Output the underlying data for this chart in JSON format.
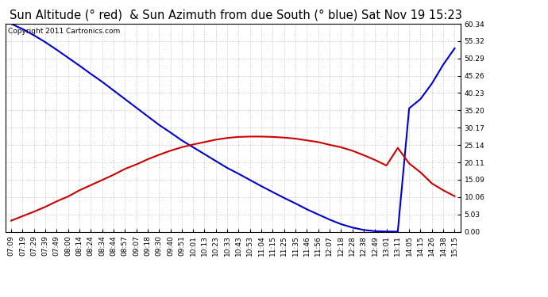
{
  "title": "Sun Altitude (° red)  & Sun Azimuth from due South (° blue) Sat Nov 19 15:23",
  "copyright_text": "Copyright 2011 Cartronics.com",
  "background_color": "#ffffff",
  "plot_bg_color": "#ffffff",
  "grid_color": "#b0b0b0",
  "y_ticks": [
    0.0,
    5.03,
    10.06,
    15.09,
    20.11,
    25.14,
    30.17,
    35.2,
    40.23,
    45.26,
    50.29,
    55.32,
    60.34
  ],
  "x_labels": [
    "07:09",
    "07:19",
    "07:29",
    "07:39",
    "07:49",
    "08:00",
    "08:14",
    "08:24",
    "08:34",
    "08:44",
    "08:57",
    "09:07",
    "09:18",
    "09:30",
    "09:40",
    "09:51",
    "10:01",
    "10:13",
    "10:23",
    "10:33",
    "10:43",
    "10:53",
    "11:04",
    "11:15",
    "11:25",
    "11:35",
    "11:46",
    "11:56",
    "12:07",
    "12:18",
    "12:28",
    "12:38",
    "12:49",
    "13:01",
    "13:11",
    "14:05",
    "14:15",
    "14:26",
    "14:38",
    "15:15"
  ],
  "blue_data": [
    60.34,
    58.8,
    57.0,
    55.0,
    52.8,
    50.5,
    48.2,
    45.8,
    43.5,
    41.0,
    38.5,
    36.0,
    33.5,
    31.0,
    28.8,
    26.5,
    24.5,
    22.5,
    20.5,
    18.5,
    16.8,
    15.0,
    13.2,
    11.5,
    9.8,
    8.2,
    6.5,
    5.0,
    3.5,
    2.2,
    1.2,
    0.5,
    0.15,
    0.05,
    0.02,
    35.8,
    38.5,
    43.0,
    48.5,
    53.2
  ],
  "red_data": [
    3.2,
    4.5,
    5.8,
    7.2,
    8.8,
    10.2,
    12.0,
    13.5,
    15.0,
    16.5,
    18.2,
    19.5,
    21.0,
    22.3,
    23.5,
    24.5,
    25.3,
    26.0,
    26.7,
    27.2,
    27.5,
    27.6,
    27.6,
    27.5,
    27.3,
    27.0,
    26.5,
    26.0,
    25.2,
    24.5,
    23.5,
    22.2,
    20.8,
    19.2,
    24.3,
    19.8,
    17.2,
    14.0,
    12.0,
    10.3
  ],
  "line_color_blue": "#0000cc",
  "line_color_red": "#cc0000",
  "line_width": 1.5,
  "title_fontsize": 10.5,
  "tick_fontsize": 6.5,
  "copyright_fontsize": 6.5
}
